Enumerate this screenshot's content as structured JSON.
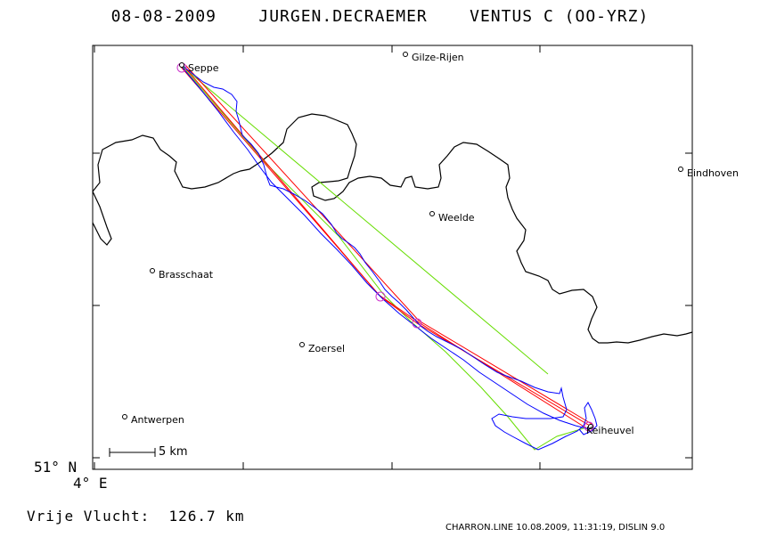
{
  "header": {
    "date": "08-08-2009",
    "pilot": "JURGEN.DECRAEMER",
    "glider": "VENTUS C (OO-YRZ)"
  },
  "map": {
    "lat_label": "51° N",
    "lon_label": "4° E",
    "scale_label": "5 km",
    "towns": [
      {
        "name": "Seppe"
      },
      {
        "name": "Gilze-Rijen"
      },
      {
        "name": "Eindhoven"
      },
      {
        "name": "Weelde"
      },
      {
        "name": "Brasschaat"
      },
      {
        "name": "Zoersel"
      },
      {
        "name": "Antwerpen"
      },
      {
        "name": "Keiheuvel"
      }
    ],
    "colors": {
      "border": "#000000",
      "track": "#0000ff",
      "task": "#ff0000",
      "optimized": "#66dd00",
      "turnpoint": "#cc33cc"
    }
  },
  "footer": {
    "distance": "Vrije Vlucht:  126.7 km",
    "credits": "CHARRON.LINE 10.08.2009, 11:31:19, DISLIN 9.0"
  }
}
